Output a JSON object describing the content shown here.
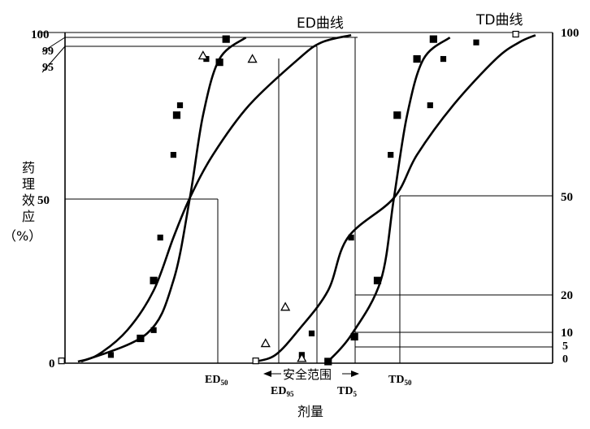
{
  "labels": {
    "ed_curve": "ED曲线",
    "td_curve": "TD曲线",
    "y_axis": [
      "药",
      "理",
      "效",
      "应",
      "（%）"
    ],
    "x_axis": "剂量",
    "safety_range": "安全范围",
    "ed50": "ED",
    "ed50_sub": "50",
    "ed95": "ED",
    "ed95_sub": "95",
    "td5": "TD",
    "td5_sub": "5",
    "td50": "TD",
    "td50_sub": "50"
  },
  "left_ticks": [
    {
      "label": "100",
      "value": 100
    },
    {
      "label": "99",
      "value": 99
    },
    {
      "label": "95",
      "value": 95
    },
    {
      "label": "50",
      "value": 50
    },
    {
      "label": "0",
      "value": 0
    }
  ],
  "right_ticks": [
    {
      "label": "100",
      "value": 100
    },
    {
      "label": "50",
      "value": 50
    },
    {
      "label": "20",
      "value": 20
    },
    {
      "label": "10",
      "value": 10
    },
    {
      "label": "5",
      "value": 5
    },
    {
      "label": "0",
      "value": 0
    }
  ],
  "curves": {
    "ed_steep": [
      [
        0.0,
        0.5
      ],
      [
        2.0,
        9.0
      ],
      [
        2.8,
        25
      ],
      [
        3.3,
        50
      ],
      [
        3.7,
        75
      ],
      [
        4.2,
        92
      ],
      [
        5.0,
        98.5
      ]
    ],
    "ed_shallow": [
      [
        -0.1,
        0.5
      ],
      [
        0.5,
        2.5
      ],
      [
        1.4,
        10
      ],
      [
        2.2,
        22
      ],
      [
        2.8,
        38
      ],
      [
        3.3,
        50
      ],
      [
        4.0,
        63
      ],
      [
        5.1,
        78
      ],
      [
        6.6,
        92
      ],
      [
        7.3,
        97
      ],
      [
        8.2,
        99.2
      ]
    ],
    "td_steep": [
      [
        7.5,
        0.5
      ],
      [
        8.2,
        8.5
      ],
      [
        9.1,
        25
      ],
      [
        9.5,
        50
      ],
      [
        9.9,
        75
      ],
      [
        10.4,
        92
      ],
      [
        11.2,
        98.5
      ]
    ],
    "td_shallow": [
      [
        5.3,
        0.5
      ],
      [
        5.9,
        2.5
      ],
      [
        6.6,
        10
      ],
      [
        7.5,
        22
      ],
      [
        8.1,
        38
      ],
      [
        9.5,
        50
      ],
      [
        10.2,
        63
      ],
      [
        11.3,
        78
      ],
      [
        12.6,
        92
      ],
      [
        13.3,
        97
      ],
      [
        13.8,
        99.2
      ]
    ]
  },
  "markers": {
    "ed_squares": [
      [
        1.8,
        7.5
      ],
      [
        2.2,
        25
      ],
      [
        2.9,
        75
      ],
      [
        4.2,
        91
      ],
      [
        4.4,
        98
      ]
    ],
    "ed_small_squares": [
      [
        0.9,
        2.5
      ],
      [
        2.2,
        10
      ],
      [
        2.4,
        38
      ],
      [
        2.8,
        63
      ],
      [
        3.0,
        78
      ],
      [
        3.8,
        92
      ]
    ],
    "ed_open": [
      [
        -0.6,
        0.7
      ]
    ],
    "td_squares": [
      [
        7.5,
        0.5
      ],
      [
        8.3,
        8
      ],
      [
        9.0,
        25
      ],
      [
        9.6,
        75
      ],
      [
        10.2,
        92
      ],
      [
        10.7,
        98
      ]
    ],
    "td_small_squares": [
      [
        6.7,
        2.5
      ],
      [
        7.0,
        9
      ],
      [
        8.2,
        38
      ],
      [
        9.4,
        63
      ],
      [
        10.6,
        78
      ],
      [
        11.0,
        92
      ],
      [
        12.0,
        97
      ]
    ],
    "td_open": [
      [
        5.3,
        0.7
      ],
      [
        13.2,
        99.5
      ]
    ],
    "triangles": [
      [
        3.7,
        93
      ],
      [
        5.2,
        92
      ],
      [
        5.6,
        6
      ],
      [
        6.2,
        17
      ],
      [
        6.7,
        1.5
      ]
    ]
  }
}
